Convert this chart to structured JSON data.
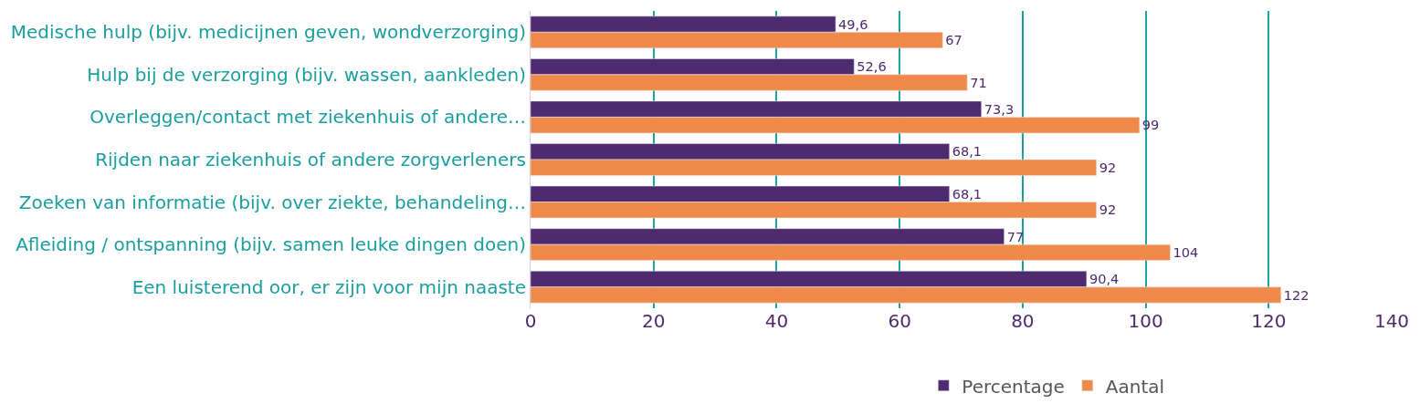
{
  "chart_data": {
    "type": "bar",
    "orientation": "horizontal",
    "categories": [
      "Medische hulp (bijv. medicijnen geven, wondverzorging)",
      "Hulp bij de verzorging (bijv. wassen, aankleden)",
      "Overleggen/contact met ziekenhuis of andere…",
      "Rijden naar ziekenhuis of andere zorgverleners",
      "Zoeken van informatie (bijv. over ziekte, behandeling…",
      "Afleiding / ontspanning (bijv. samen leuke dingen doen)",
      "Een luisterend oor, er zijn voor mijn naaste"
    ],
    "series": [
      {
        "name": "Percentage",
        "color": "#4e2a6e",
        "values": [
          49.6,
          52.6,
          73.3,
          68.1,
          68.1,
          77,
          90.4
        ],
        "value_labels": [
          "49,6",
          "52,6",
          "73,3",
          "68,1",
          "68,1",
          "77",
          "90,4"
        ]
      },
      {
        "name": "Aantal",
        "color": "#f08a4b",
        "values": [
          67,
          71,
          99,
          92,
          92,
          104,
          122
        ],
        "value_labels": [
          "67",
          "71",
          "99",
          "92",
          "92",
          "104",
          "122"
        ]
      }
    ],
    "xlim": [
      0,
      140
    ],
    "xticks": [
      0,
      20,
      40,
      60,
      80,
      100,
      120,
      140
    ],
    "grid": "x",
    "legend": "bottom"
  }
}
